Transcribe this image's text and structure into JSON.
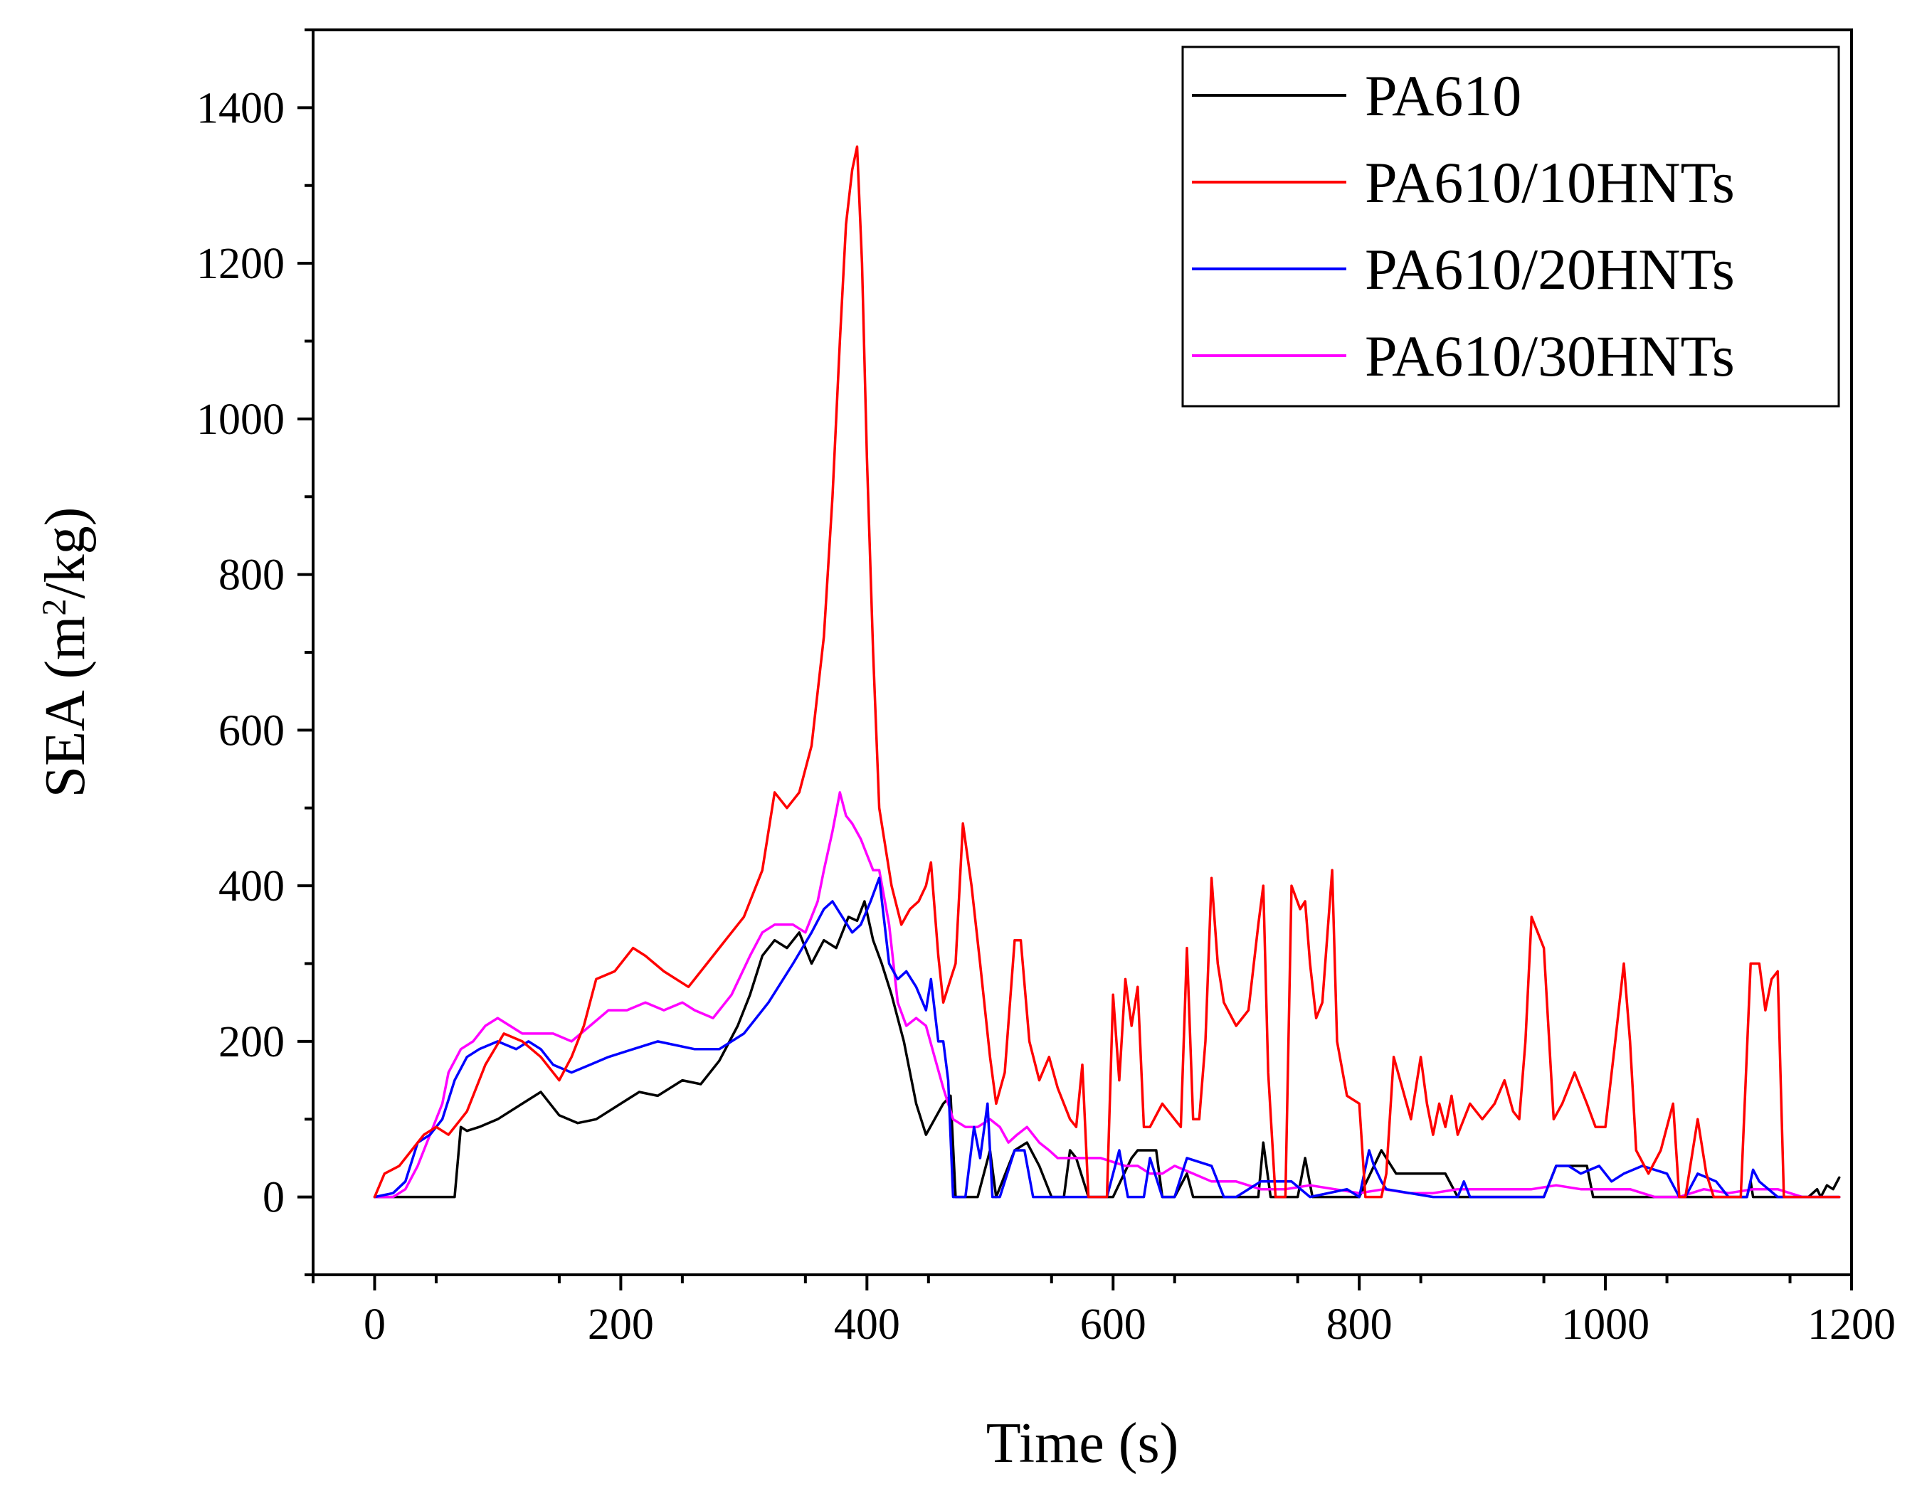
{
  "chart_data": {
    "type": "line",
    "title": "",
    "xlabel": "Time (s)",
    "ylabel_main": "SEA (m",
    "ylabel_sup": "2",
    "ylabel_tail": "/kg)",
    "xlim": [
      -50,
      1200
    ],
    "ylim": [
      -100,
      1500
    ],
    "xticks": [
      0,
      200,
      400,
      600,
      800,
      1000,
      1200
    ],
    "xtick_labels": [
      "0",
      "200",
      "400",
      "600",
      "800",
      "1000",
      "1200"
    ],
    "yticks": [
      0,
      200,
      400,
      600,
      800,
      1000,
      1200,
      1400
    ],
    "ytick_labels": [
      "0",
      "200",
      "400",
      "600",
      "800",
      "1000",
      "1200",
      "1400"
    ],
    "legend_position": "top-right",
    "series": [
      {
        "name": "PA610",
        "color": "#000000",
        "x": [
          0,
          65,
          70,
          75,
          85,
          100,
          120,
          135,
          150,
          165,
          180,
          200,
          215,
          230,
          250,
          265,
          280,
          295,
          305,
          315,
          325,
          335,
          345,
          355,
          365,
          375,
          385,
          392,
          398,
          405,
          412,
          420,
          430,
          440,
          448,
          455,
          462,
          468,
          472,
          478,
          490,
          500,
          505,
          520,
          530,
          540,
          550,
          560,
          565,
          570,
          580,
          590,
          600,
          615,
          620,
          635,
          640,
          650,
          660,
          665,
          672,
          700,
          718,
          722,
          728,
          750,
          756,
          762,
          800,
          812,
          818,
          830,
          870,
          880,
          950,
          960,
          985,
          990,
          1000,
          1050,
          1100,
          1115,
          1118,
          1120,
          1125,
          1140,
          1150,
          1165,
          1172,
          1175,
          1180,
          1185,
          1190
        ],
        "values": [
          0,
          0,
          90,
          85,
          90,
          100,
          120,
          135,
          105,
          95,
          100,
          120,
          135,
          130,
          150,
          145,
          175,
          220,
          260,
          310,
          330,
          320,
          340,
          300,
          330,
          320,
          360,
          355,
          380,
          330,
          300,
          260,
          200,
          120,
          80,
          100,
          120,
          130,
          0,
          0,
          0,
          60,
          0,
          60,
          70,
          40,
          0,
          0,
          60,
          50,
          0,
          0,
          0,
          50,
          60,
          60,
          0,
          0,
          30,
          0,
          0,
          0,
          0,
          70,
          0,
          0,
          50,
          0,
          0,
          40,
          60,
          30,
          30,
          0,
          0,
          40,
          40,
          0,
          0,
          0,
          0,
          0,
          20,
          0,
          0,
          0,
          0,
          0,
          10,
          0,
          15,
          10,
          25
        ]
      },
      {
        "name": "PA610/10HNTs",
        "color": "#ff0000",
        "x": [
          0,
          8,
          20,
          30,
          40,
          50,
          60,
          75,
          90,
          105,
          120,
          135,
          150,
          160,
          170,
          180,
          195,
          210,
          220,
          235,
          255,
          270,
          285,
          300,
          315,
          325,
          335,
          345,
          355,
          365,
          372,
          378,
          383,
          388,
          392,
          396,
          400,
          405,
          410,
          420,
          428,
          435,
          442,
          448,
          452,
          458,
          462,
          468,
          472,
          478,
          485,
          492,
          500,
          505,
          512,
          520,
          525,
          532,
          540,
          548,
          555,
          565,
          570,
          575,
          580,
          585,
          590,
          595,
          600,
          605,
          610,
          615,
          620,
          625,
          630,
          640,
          650,
          655,
          660,
          665,
          670,
          675,
          680,
          685,
          690,
          700,
          710,
          718,
          722,
          726,
          732,
          740,
          745,
          752,
          756,
          760,
          765,
          770,
          778,
          782,
          790,
          800,
          805,
          812,
          818,
          822,
          828,
          835,
          842,
          850,
          855,
          860,
          865,
          870,
          875,
          880,
          890,
          900,
          910,
          918,
          925,
          930,
          935,
          940,
          945,
          950,
          958,
          965,
          975,
          985,
          992,
          1000,
          1008,
          1015,
          1020,
          1025,
          1035,
          1045,
          1055,
          1060,
          1065,
          1075,
          1082,
          1088,
          1095,
          1102,
          1110,
          1118,
          1125,
          1130,
          1135,
          1140,
          1145,
          1150,
          1160,
          1170,
          1180,
          1190
        ],
        "values": [
          0,
          30,
          40,
          60,
          80,
          90,
          80,
          110,
          170,
          210,
          200,
          180,
          150,
          180,
          220,
          280,
          290,
          320,
          310,
          290,
          270,
          300,
          330,
          360,
          420,
          520,
          500,
          520,
          580,
          720,
          900,
          1100,
          1250,
          1320,
          1350,
          1200,
          950,
          700,
          500,
          400,
          350,
          370,
          380,
          400,
          430,
          310,
          250,
          280,
          300,
          480,
          400,
          300,
          180,
          120,
          160,
          330,
          330,
          200,
          150,
          180,
          140,
          100,
          90,
          170,
          0,
          0,
          0,
          0,
          260,
          150,
          280,
          220,
          270,
          90,
          90,
          120,
          100,
          90,
          320,
          100,
          100,
          200,
          410,
          300,
          250,
          220,
          240,
          350,
          400,
          160,
          0,
          0,
          400,
          370,
          380,
          300,
          230,
          250,
          420,
          200,
          130,
          120,
          0,
          0,
          0,
          30,
          180,
          140,
          100,
          180,
          120,
          80,
          120,
          90,
          130,
          80,
          120,
          100,
          120,
          150,
          110,
          100,
          200,
          360,
          340,
          320,
          100,
          120,
          160,
          120,
          90,
          90,
          200,
          300,
          200,
          60,
          30,
          60,
          120,
          0,
          0,
          100,
          30,
          0,
          0,
          0,
          0,
          300,
          300,
          240,
          280,
          290,
          0,
          0,
          0,
          0,
          0,
          0
        ]
      },
      {
        "name": "PA610/20HNTs",
        "color": "#0000ff",
        "x": [
          0,
          15,
          25,
          35,
          45,
          55,
          65,
          75,
          85,
          100,
          115,
          125,
          135,
          145,
          160,
          175,
          190,
          210,
          230,
          260,
          280,
          300,
          320,
          340,
          355,
          365,
          372,
          380,
          388,
          395,
          403,
          410,
          418,
          425,
          432,
          440,
          448,
          452,
          458,
          462,
          466,
          470,
          480,
          487,
          492,
          498,
          502,
          508,
          520,
          528,
          535,
          540,
          548,
          595,
          605,
          612,
          625,
          630,
          640,
          645,
          650,
          660,
          680,
          690,
          700,
          720,
          745,
          760,
          790,
          800,
          808,
          812,
          818,
          822,
          860,
          880,
          885,
          890,
          950,
          960,
          970,
          980,
          995,
          1005,
          1015,
          1030,
          1050,
          1060,
          1065,
          1075,
          1090,
          1100,
          1115,
          1120,
          1125,
          1140,
          1190
        ],
        "values": [
          0,
          5,
          20,
          70,
          80,
          100,
          150,
          180,
          190,
          200,
          190,
          200,
          190,
          170,
          160,
          170,
          180,
          190,
          200,
          190,
          190,
          210,
          250,
          300,
          340,
          370,
          380,
          360,
          340,
          350,
          380,
          410,
          300,
          280,
          290,
          270,
          240,
          280,
          200,
          200,
          150,
          0,
          0,
          90,
          50,
          120,
          0,
          0,
          60,
          60,
          0,
          0,
          0,
          0,
          60,
          0,
          0,
          50,
          0,
          0,
          0,
          50,
          40,
          0,
          0,
          20,
          20,
          0,
          10,
          0,
          60,
          40,
          20,
          10,
          0,
          0,
          20,
          0,
          0,
          40,
          40,
          30,
          40,
          20,
          30,
          40,
          30,
          0,
          0,
          30,
          20,
          0,
          0,
          35,
          20,
          0,
          0
        ]
      },
      {
        "name": "PA610/30HNTs",
        "color": "#ff00ff",
        "x": [
          0,
          15,
          25,
          35,
          45,
          55,
          60,
          70,
          80,
          90,
          100,
          110,
          120,
          130,
          145,
          160,
          175,
          190,
          205,
          220,
          235,
          250,
          260,
          275,
          290,
          305,
          315,
          325,
          340,
          350,
          360,
          365,
          372,
          378,
          383,
          388,
          395,
          400,
          405,
          410,
          418,
          425,
          432,
          440,
          448,
          455,
          462,
          470,
          480,
          490,
          500,
          508,
          515,
          522,
          530,
          540,
          548,
          555,
          565,
          575,
          590,
          600,
          610,
          620,
          630,
          640,
          650,
          665,
          680,
          700,
          720,
          740,
          760,
          780,
          800,
          820,
          840,
          860,
          880,
          900,
          920,
          940,
          960,
          980,
          1000,
          1020,
          1040,
          1060,
          1080,
          1100,
          1120,
          1140,
          1150,
          1160,
          1170,
          1190
        ],
        "values": [
          0,
          0,
          10,
          40,
          80,
          120,
          160,
          190,
          200,
          220,
          230,
          220,
          210,
          210,
          210,
          200,
          220,
          240,
          240,
          250,
          240,
          250,
          240,
          230,
          260,
          310,
          340,
          350,
          350,
          340,
          380,
          420,
          470,
          520,
          490,
          480,
          460,
          440,
          420,
          420,
          350,
          250,
          220,
          230,
          220,
          180,
          140,
          100,
          90,
          90,
          100,
          90,
          70,
          80,
          90,
          70,
          60,
          50,
          50,
          50,
          50,
          45,
          40,
          40,
          30,
          30,
          40,
          30,
          20,
          20,
          10,
          10,
          15,
          10,
          5,
          10,
          5,
          5,
          10,
          10,
          10,
          10,
          15,
          10,
          10,
          10,
          0,
          0,
          10,
          5,
          10,
          10,
          5,
          0,
          0,
          0
        ]
      }
    ]
  }
}
